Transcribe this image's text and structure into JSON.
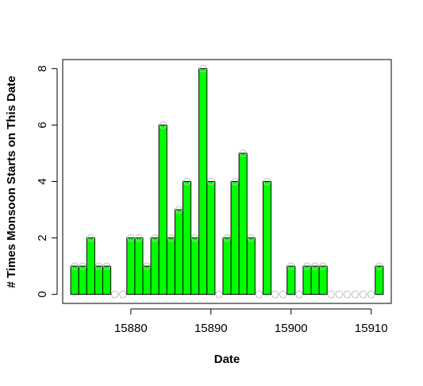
{
  "chart_data": {
    "type": "bar",
    "title": "",
    "xlabel": "Date",
    "ylabel": "# Times Monsoon Starts on This Date",
    "x": [
      15873,
      15874,
      15875,
      15876,
      15877,
      15878,
      15879,
      15880,
      15881,
      15882,
      15883,
      15884,
      15885,
      15886,
      15887,
      15888,
      15889,
      15890,
      15891,
      15892,
      15893,
      15894,
      15895,
      15896,
      15897,
      15898,
      15899,
      15900,
      15901,
      15902,
      15903,
      15904,
      15905,
      15906,
      15907,
      15908,
      15909,
      15910,
      15911
    ],
    "values": [
      1,
      1,
      2,
      1,
      1,
      0,
      0,
      2,
      2,
      1,
      2,
      6,
      2,
      3,
      4,
      2,
      8,
      4,
      0,
      2,
      4,
      5,
      2,
      0,
      4,
      0,
      0,
      1,
      0,
      1,
      1,
      1,
      0,
      0,
      0,
      0,
      0,
      0,
      1
    ],
    "xticks": [
      15880,
      15890,
      15900,
      15910
    ],
    "yticks": [
      0,
      2,
      4,
      6,
      8
    ],
    "xlim": [
      15871.5,
      15912.5
    ],
    "ylim": [
      -0.32,
      8.32
    ],
    "bar_color": "#00ff00",
    "bar_border_color": "#000000",
    "point_color": "#bebebe",
    "grid": false,
    "legend": "none"
  }
}
